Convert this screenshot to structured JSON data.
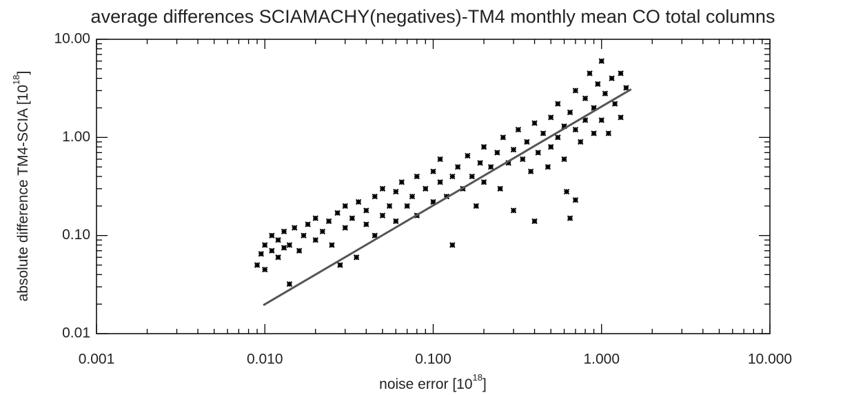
{
  "chart_data": {
    "type": "scatter",
    "title": "average differences SCIAMACHY(negatives)-TM4 monthly mean CO total columns",
    "xlabel": [
      "noise error [10",
      "18",
      "]"
    ],
    "ylabel": [
      "absolute difference TM4-SCIA [10",
      "18",
      "]"
    ],
    "xscale": "log",
    "yscale": "log",
    "xlim": [
      0.001,
      10
    ],
    "ylim": [
      0.01,
      10
    ],
    "xticks": [
      {
        "value": 0.001,
        "label": "0.001"
      },
      {
        "value": 0.01,
        "label": "0.010"
      },
      {
        "value": 0.1,
        "label": "0.100"
      },
      {
        "value": 1,
        "label": "1.000"
      },
      {
        "value": 10,
        "label": "10.000"
      }
    ],
    "yticks": [
      {
        "value": 0.01,
        "label": "0.01"
      },
      {
        "value": 0.1,
        "label": "0.10"
      },
      {
        "value": 1,
        "label": "1.00"
      },
      {
        "value": 10,
        "label": "10.00"
      }
    ],
    "xminorticks": [
      0.002,
      0.003,
      0.004,
      0.005,
      0.006,
      0.007,
      0.008,
      0.009,
      0.02,
      0.03,
      0.04,
      0.05,
      0.06,
      0.07,
      0.08,
      0.09,
      0.2,
      0.3,
      0.4,
      0.5,
      0.6,
      0.7,
      0.8,
      0.9,
      2,
      3,
      4,
      5,
      6,
      7,
      8,
      9
    ],
    "yminorticks": [
      0.02,
      0.03,
      0.04,
      0.05,
      0.06,
      0.07,
      0.08,
      0.09,
      0.2,
      0.3,
      0.4,
      0.5,
      0.6,
      0.7,
      0.8,
      0.9,
      2,
      3,
      4,
      5,
      6,
      7,
      8,
      9
    ],
    "points": {
      "color": "#000000",
      "x": [
        0.009,
        0.0095,
        0.01,
        0.01,
        0.011,
        0.011,
        0.012,
        0.012,
        0.013,
        0.013,
        0.014,
        0.014,
        0.015,
        0.016,
        0.017,
        0.018,
        0.02,
        0.02,
        0.022,
        0.024,
        0.025,
        0.027,
        0.028,
        0.03,
        0.03,
        0.033,
        0.035,
        0.036,
        0.04,
        0.04,
        0.045,
        0.045,
        0.05,
        0.05,
        0.055,
        0.06,
        0.06,
        0.065,
        0.07,
        0.075,
        0.08,
        0.08,
        0.09,
        0.1,
        0.1,
        0.11,
        0.11,
        0.12,
        0.13,
        0.13,
        0.14,
        0.15,
        0.16,
        0.17,
        0.18,
        0.19,
        0.2,
        0.2,
        0.22,
        0.24,
        0.25,
        0.26,
        0.28,
        0.3,
        0.3,
        0.32,
        0.34,
        0.36,
        0.38,
        0.4,
        0.4,
        0.42,
        0.45,
        0.48,
        0.5,
        0.5,
        0.55,
        0.55,
        0.6,
        0.6,
        0.62,
        0.65,
        0.65,
        0.7,
        0.7,
        0.7,
        0.75,
        0.8,
        0.8,
        0.85,
        0.9,
        0.9,
        0.95,
        1.0,
        1.0,
        1.05,
        1.1,
        1.15,
        1.2,
        1.3,
        1.3,
        1.4
      ],
      "y": [
        0.05,
        0.065,
        0.08,
        0.045,
        0.07,
        0.1,
        0.06,
        0.09,
        0.075,
        0.11,
        0.032,
        0.08,
        0.12,
        0.07,
        0.1,
        0.13,
        0.09,
        0.15,
        0.11,
        0.14,
        0.08,
        0.17,
        0.05,
        0.12,
        0.2,
        0.15,
        0.06,
        0.22,
        0.13,
        0.18,
        0.25,
        0.1,
        0.16,
        0.3,
        0.2,
        0.14,
        0.28,
        0.35,
        0.2,
        0.25,
        0.4,
        0.16,
        0.3,
        0.22,
        0.45,
        0.35,
        0.6,
        0.25,
        0.4,
        0.08,
        0.5,
        0.3,
        0.65,
        0.4,
        0.2,
        0.55,
        0.8,
        0.35,
        0.5,
        0.7,
        0.3,
        1.0,
        0.55,
        0.75,
        0.18,
        1.2,
        0.6,
        0.9,
        0.45,
        1.4,
        0.14,
        0.7,
        1.1,
        0.5,
        1.6,
        0.8,
        1.0,
        2.2,
        0.6,
        1.3,
        0.28,
        1.8,
        0.15,
        0.23,
        1.2,
        3.0,
        0.9,
        1.5,
        2.5,
        4.5,
        1.1,
        2.0,
        3.5,
        1.5,
        6.0,
        2.8,
        1.1,
        4.0,
        2.2,
        1.6,
        4.5,
        3.2
      ]
    },
    "fit": {
      "color": "#555555",
      "x": [
        0.0098,
        1.5
      ],
      "y": [
        0.0195,
        3.1
      ]
    }
  }
}
